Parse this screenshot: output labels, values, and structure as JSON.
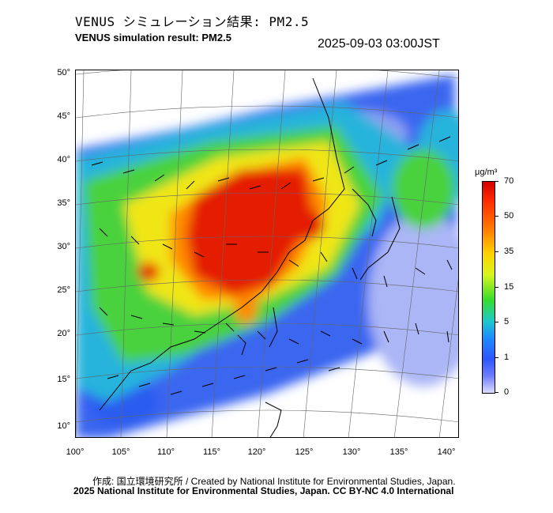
{
  "header": {
    "title_jp": "VENUS シミュレーション結果: PM2.5",
    "title_en": "VENUS simulation result: PM2.5",
    "timestamp": "2025-09-03 03:00JST"
  },
  "axes": {
    "lat_labels": [
      "50°",
      "45°",
      "40°",
      "35°",
      "30°",
      "25°",
      "20°",
      "15°",
      "10°"
    ],
    "lon_labels": [
      "100°",
      "105°",
      "110°",
      "115°",
      "120°",
      "125°",
      "130°",
      "135°",
      "140°"
    ]
  },
  "colorbar": {
    "unit": "μg/m³",
    "labels": [
      "70",
      "50",
      "35",
      "15",
      "5",
      "1",
      "0"
    ]
  },
  "footer": {
    "credit_line": "作成: 国立環境研究所 / Created by National Institute for Environmental Studies, Japan.",
    "copyright_line": "2025 National Institute for Environmental Studies, Japan. CC BY-NC 4.0 International"
  },
  "colors": {
    "very_high": "#e41a00",
    "high": "#ff8a00",
    "moderate": "#f0e614",
    "low_moderate": "#4ad23c",
    "low": "#28b4dc",
    "very_low": "#2c5cf0",
    "minimal": "#b4c0f5"
  }
}
